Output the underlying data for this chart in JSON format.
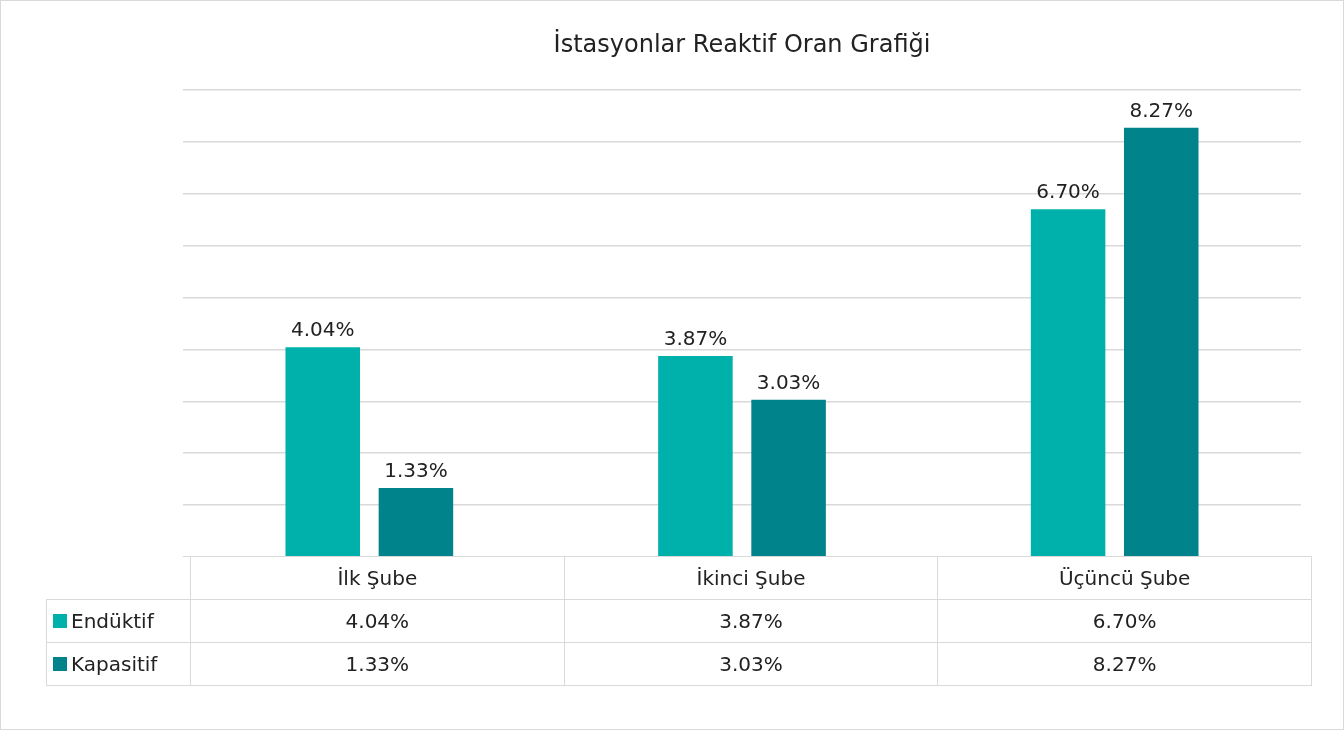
{
  "chart_data": {
    "type": "bar",
    "title": "İstasyonlar Reaktif Oran Grafiği",
    "categories": [
      "İlk Şube",
      "İkinci Şube",
      "Üçüncü Şube"
    ],
    "series": [
      {
        "name": "Endüktif",
        "color": "#00b0aa",
        "values": [
          4.04,
          3.87,
          6.7
        ],
        "value_labels": [
          "4.04%",
          "3.87%",
          "6.70%"
        ]
      },
      {
        "name": "Kapasitif",
        "color": "#00838a",
        "values": [
          1.33,
          3.03,
          8.27
        ],
        "value_labels": [
          "1.33%",
          "3.03%",
          "8.27%"
        ]
      }
    ],
    "ylim": [
      0,
      9
    ],
    "yticks": [
      {
        "value": 0,
        "label": null
      },
      {
        "value": 1,
        "label": null
      },
      {
        "value": 2,
        "label": null
      },
      {
        "value": 3,
        "label": null
      },
      {
        "value": 4,
        "label": null
      },
      {
        "value": 5,
        "label": null
      },
      {
        "value": 6,
        "label": null
      },
      {
        "value": 7,
        "label": null
      },
      {
        "value": 8,
        "label": null
      },
      {
        "value": 9,
        "label": null
      }
    ],
    "grid": "y",
    "legend": "bottom left"
  }
}
